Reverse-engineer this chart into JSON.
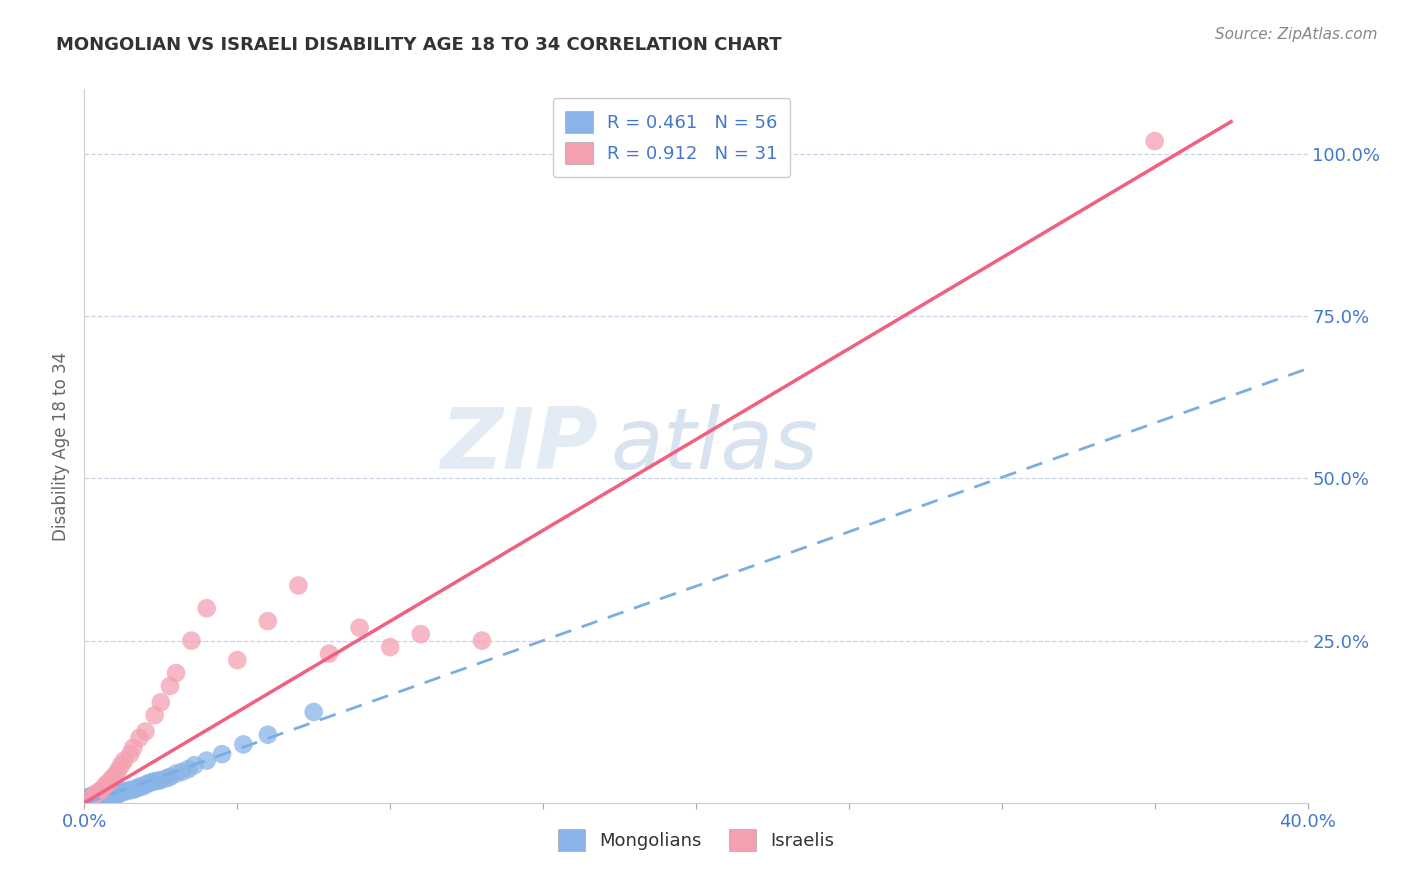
{
  "title": "MONGOLIAN VS ISRAELI DISABILITY AGE 18 TO 34 CORRELATION CHART",
  "source_text": "Source: ZipAtlas.com",
  "ylabel": "Disability Age 18 to 34",
  "xlim": [
    0.0,
    0.4
  ],
  "ylim": [
    0.0,
    1.1
  ],
  "xtick_positions": [
    0.0,
    0.05,
    0.1,
    0.15,
    0.2,
    0.25,
    0.3,
    0.35,
    0.4
  ],
  "xticklabels": [
    "0.0%",
    "",
    "",
    "",
    "",
    "",
    "",
    "",
    "40.0%"
  ],
  "ytick_positions": [
    0.25,
    0.5,
    0.75,
    1.0
  ],
  "yticklabels": [
    "25.0%",
    "50.0%",
    "75.0%",
    "100.0%"
  ],
  "mongolian_color": "#8ab4e8",
  "israeli_color": "#f4a0b0",
  "mongolian_line_color": "#7aaee0",
  "israeli_line_color": "#f06080",
  "R_mongolian": 0.461,
  "N_mongolian": 56,
  "R_israeli": 0.912,
  "N_israeli": 31,
  "legend_mongolians": "Mongolians",
  "legend_israelis": "Israelis",
  "watermark_zip": "ZIP",
  "watermark_atlas": "atlas",
  "background_color": "#ffffff",
  "grid_color": "#c8d4e8",
  "title_color": "#333333",
  "axis_label_color": "#4477cc",
  "mongolian_scatter_x": [
    0.001,
    0.001,
    0.002,
    0.002,
    0.002,
    0.003,
    0.003,
    0.003,
    0.003,
    0.004,
    0.004,
    0.004,
    0.005,
    0.005,
    0.005,
    0.005,
    0.006,
    0.006,
    0.006,
    0.007,
    0.007,
    0.007,
    0.008,
    0.008,
    0.008,
    0.009,
    0.009,
    0.01,
    0.01,
    0.011,
    0.011,
    0.012,
    0.013,
    0.014,
    0.015,
    0.016,
    0.017,
    0.018,
    0.019,
    0.02,
    0.021,
    0.022,
    0.023,
    0.024,
    0.025,
    0.027,
    0.028,
    0.03,
    0.032,
    0.034,
    0.036,
    0.04,
    0.045,
    0.052,
    0.06,
    0.075
  ],
  "mongolian_scatter_y": [
    0.005,
    0.008,
    0.005,
    0.008,
    0.01,
    0.005,
    0.008,
    0.01,
    0.012,
    0.005,
    0.008,
    0.01,
    0.005,
    0.008,
    0.01,
    0.012,
    0.008,
    0.01,
    0.013,
    0.008,
    0.01,
    0.013,
    0.01,
    0.012,
    0.015,
    0.01,
    0.013,
    0.012,
    0.015,
    0.013,
    0.016,
    0.015,
    0.018,
    0.018,
    0.02,
    0.02,
    0.022,
    0.025,
    0.025,
    0.028,
    0.03,
    0.032,
    0.033,
    0.034,
    0.035,
    0.038,
    0.04,
    0.045,
    0.048,
    0.052,
    0.058,
    0.065,
    0.075,
    0.09,
    0.105,
    0.14
  ],
  "israeli_scatter_x": [
    0.002,
    0.003,
    0.004,
    0.005,
    0.006,
    0.007,
    0.008,
    0.009,
    0.01,
    0.011,
    0.012,
    0.013,
    0.015,
    0.016,
    0.018,
    0.02,
    0.023,
    0.025,
    0.028,
    0.03,
    0.035,
    0.04,
    0.05,
    0.06,
    0.07,
    0.08,
    0.09,
    0.1,
    0.11,
    0.13,
    0.35
  ],
  "israeli_scatter_y": [
    0.005,
    0.01,
    0.015,
    0.018,
    0.022,
    0.028,
    0.032,
    0.038,
    0.042,
    0.05,
    0.058,
    0.065,
    0.075,
    0.085,
    0.1,
    0.11,
    0.135,
    0.155,
    0.18,
    0.2,
    0.25,
    0.3,
    0.22,
    0.28,
    0.335,
    0.23,
    0.27,
    0.24,
    0.26,
    0.25,
    1.02
  ],
  "mongolian_line": {
    "x0": 0.0,
    "y0": 0.005,
    "x1": 0.4,
    "y1": 0.76
  },
  "israeli_line": {
    "x0": 0.0,
    "y0": 0.0,
    "x1": 0.375,
    "y1": 1.05
  }
}
